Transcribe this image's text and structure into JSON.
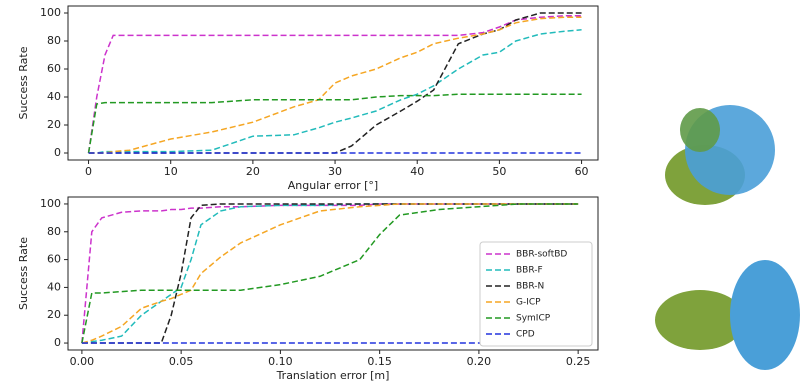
{
  "chart_data": [
    {
      "type": "line",
      "ylabel": "Success Rate",
      "xlabel": "Angular error [°]",
      "linestyle": "dashed",
      "x": [
        0,
        1,
        2,
        3,
        5,
        10,
        15,
        20,
        25,
        28,
        30,
        32,
        35,
        38,
        40,
        42,
        45,
        48,
        50,
        52,
        55,
        58,
        60
      ],
      "xlim": [
        -2.5,
        62
      ],
      "xticks": [
        0,
        10,
        20,
        30,
        40,
        50,
        60
      ],
      "ylim": [
        -5,
        105
      ],
      "yticks": [
        0,
        20,
        40,
        60,
        80,
        100
      ],
      "series": [
        {
          "color": "#cc33cc",
          "values": [
            0,
            40,
            70,
            84,
            84,
            84,
            84,
            84,
            84,
            84,
            84,
            84,
            84,
            84,
            84,
            84,
            84,
            86,
            90,
            95,
            97,
            98,
            98
          ]
        },
        {
          "color": "#22bbbb",
          "values": [
            0,
            0,
            1,
            1,
            1,
            1,
            2,
            12,
            13,
            18,
            22,
            25,
            30,
            38,
            42,
            48,
            60,
            70,
            72,
            80,
            85,
            87,
            88
          ]
        },
        {
          "color": "#222222",
          "values": [
            0,
            0,
            0,
            0,
            0,
            0,
            0,
            0,
            0,
            0,
            0,
            5,
            20,
            30,
            37,
            45,
            78,
            85,
            88,
            95,
            100,
            100,
            100
          ]
        },
        {
          "color": "#f5a623",
          "values": [
            0,
            0,
            0,
            1,
            2,
            10,
            15,
            22,
            33,
            38,
            50,
            55,
            60,
            68,
            72,
            78,
            82,
            85,
            88,
            93,
            96,
            97,
            97
          ]
        },
        {
          "color": "#229922",
          "values": [
            0,
            35,
            36,
            36,
            36,
            36,
            36,
            38,
            38,
            38,
            38,
            38,
            40,
            41,
            41,
            41,
            42,
            42,
            42,
            42,
            42,
            42,
            42
          ]
        },
        {
          "color": "#2233dd",
          "values": [
            0,
            0,
            0,
            0,
            0,
            0,
            0,
            0,
            0,
            0,
            0,
            0,
            0,
            0,
            0,
            0,
            0,
            0,
            0,
            0,
            0,
            0,
            0
          ]
        }
      ]
    },
    {
      "type": "line",
      "ylabel": "Success Rate",
      "xlabel": "Translation error [m]",
      "linestyle": "dashed",
      "legend": "lower right",
      "x": [
        0,
        0.005,
        0.01,
        0.02,
        0.03,
        0.04,
        0.045,
        0.05,
        0.055,
        0.06,
        0.07,
        0.08,
        0.1,
        0.12,
        0.14,
        0.15,
        0.16,
        0.18,
        0.2,
        0.22,
        0.25
      ],
      "xlim": [
        -0.007,
        0.26
      ],
      "xticks": [
        {
          "value": 0,
          "label": "0.00"
        },
        {
          "value": 0.05,
          "label": "0.05"
        },
        {
          "value": 0.1,
          "label": "0.10"
        },
        {
          "value": 0.15,
          "label": "0.15"
        },
        {
          "value": 0.2,
          "label": "0.20"
        },
        {
          "value": 0.25,
          "label": "0.25"
        }
      ],
      "ylim": [
        -5,
        105
      ],
      "yticks": [
        0,
        20,
        40,
        60,
        80,
        100
      ],
      "series": [
        {
          "name": "BBR-softBD",
          "color": "#cc33cc",
          "values": [
            0,
            80,
            90,
            94,
            95,
            95,
            96,
            96,
            97,
            97,
            98,
            98,
            99,
            99,
            99,
            100,
            100,
            100,
            100,
            100,
            100
          ]
        },
        {
          "name": "BBR-F",
          "color": "#22bbbb",
          "values": [
            0,
            1,
            2,
            5,
            20,
            30,
            35,
            40,
            60,
            85,
            95,
            98,
            99,
            99,
            100,
            100,
            100,
            100,
            100,
            100,
            100
          ]
        },
        {
          "name": "BBR-N",
          "color": "#222222",
          "values": [
            0,
            0,
            0,
            0,
            0,
            0,
            20,
            50,
            90,
            99,
            100,
            100,
            100,
            100,
            100,
            100,
            100,
            100,
            100,
            100,
            100
          ]
        },
        {
          "name": "G-ICP",
          "color": "#f5a623",
          "values": [
            0,
            2,
            5,
            12,
            25,
            30,
            32,
            35,
            38,
            50,
            62,
            72,
            85,
            95,
            98,
            99,
            100,
            100,
            100,
            100,
            100
          ]
        },
        {
          "name": "SymICP",
          "color": "#229922",
          "values": [
            0,
            36,
            36,
            37,
            38,
            38,
            38,
            38,
            38,
            38,
            38,
            38,
            42,
            48,
            60,
            78,
            92,
            96,
            98,
            100,
            100
          ]
        },
        {
          "name": "CPD",
          "color": "#2233dd",
          "values": [
            0,
            0,
            0,
            0,
            0,
            0,
            0,
            0,
            0,
            0,
            0,
            0,
            0,
            0,
            0,
            0,
            0,
            0,
            0,
            0,
            0
          ]
        }
      ]
    }
  ]
}
